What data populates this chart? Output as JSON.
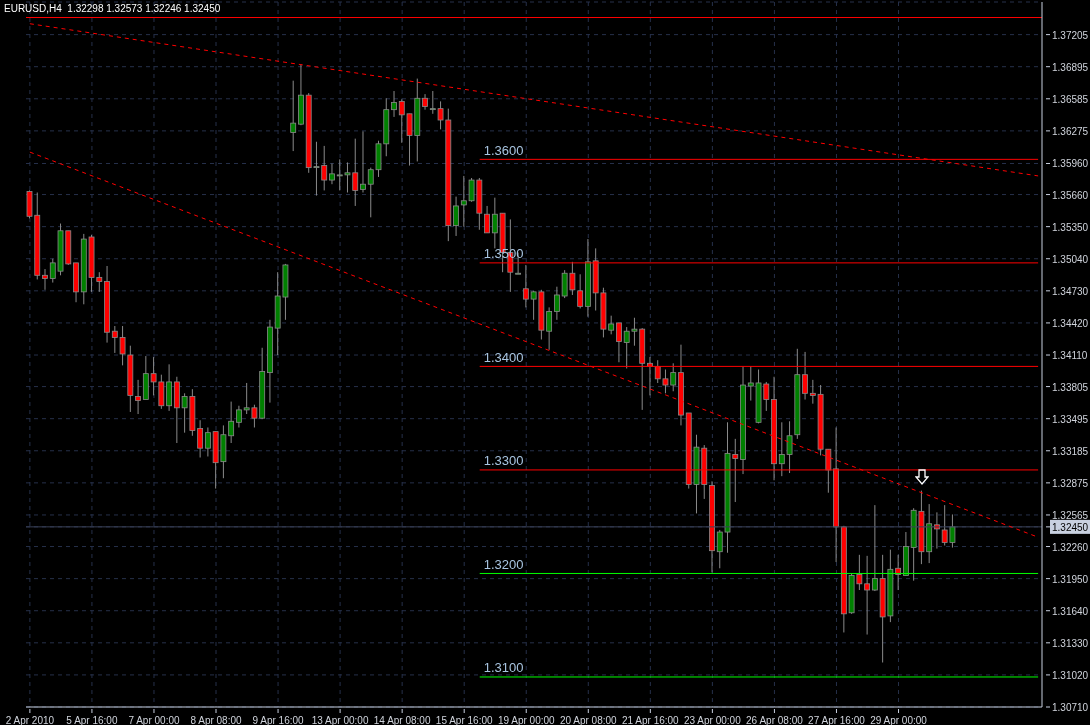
{
  "chart_data": {
    "type": "candlestick",
    "title": "EURUSD,H4  1.32298 1.32573 1.32246 1.32450",
    "categories": [
      "2 Apr 2010",
      null,
      null,
      null,
      null,
      null,
      null,
      null,
      "5 Apr 16:00",
      null,
      null,
      null,
      null,
      null,
      null,
      null,
      "7 Apr 00:00",
      null,
      null,
      null,
      null,
      null,
      null,
      null,
      "8 Apr 08:00",
      null,
      null,
      null,
      null,
      null,
      null,
      null,
      "9 Apr 16:00",
      null,
      null,
      null,
      null,
      null,
      null,
      null,
      "13 Apr 00:00",
      null,
      null,
      null,
      null,
      null,
      null,
      null,
      "14 Apr 08:00",
      null,
      null,
      null,
      null,
      null,
      null,
      null,
      "15 Apr 16:00",
      null,
      null,
      null,
      null,
      null,
      null,
      null,
      "19 Apr 00:00",
      null,
      null,
      null,
      null,
      null,
      null,
      null,
      "20 Apr 08:00",
      null,
      null,
      null,
      null,
      null,
      null,
      null,
      "21 Apr 16:00",
      null,
      null,
      null,
      null,
      null,
      null,
      null,
      "23 Apr 00:00",
      null,
      null,
      null,
      null,
      null,
      null,
      null,
      "26 Apr 08:00",
      null,
      null,
      null,
      null,
      null,
      null,
      null,
      "27 Apr 16:00",
      null,
      null,
      null,
      null,
      null,
      null,
      null,
      "29 Apr 00:00",
      null,
      null,
      null,
      null,
      null,
      null,
      null,
      null,
      null,
      null,
      null,
      null,
      null,
      null,
      null,
      null,
      null,
      null
    ],
    "ohlc": [
      [
        1.3569,
        1.357,
        1.3543,
        1.3545
      ],
      [
        1.3546,
        1.3568,
        1.3484,
        1.3488
      ],
      [
        1.3488,
        1.3494,
        1.3474,
        1.3485
      ],
      [
        1.3485,
        1.3504,
        1.3481,
        1.35
      ],
      [
        1.3492,
        1.3538,
        1.3488,
        1.3531
      ],
      [
        1.3531,
        1.3531,
        1.3498,
        1.3499
      ],
      [
        1.35,
        1.35,
        1.3462,
        1.3472
      ],
      [
        1.3472,
        1.3528,
        1.346,
        1.3523
      ],
      [
        1.3525,
        1.3527,
        1.3472,
        1.3486
      ],
      [
        1.3486,
        1.3491,
        1.3472,
        1.3482
      ],
      [
        1.3482,
        1.3497,
        1.3423,
        1.3433
      ],
      [
        1.3434,
        1.3439,
        1.3413,
        1.3428
      ],
      [
        1.3428,
        1.3439,
        1.3401,
        1.3412
      ],
      [
        1.3411,
        1.342,
        1.3356,
        1.3372
      ],
      [
        1.3371,
        1.3387,
        1.3354,
        1.3367
      ],
      [
        1.3368,
        1.341,
        1.3368,
        1.3393
      ],
      [
        1.3393,
        1.3409,
        1.3372,
        1.3385
      ],
      [
        1.3385,
        1.3392,
        1.3359,
        1.3362
      ],
      [
        1.3362,
        1.3402,
        1.3357,
        1.3385
      ],
      [
        1.3385,
        1.339,
        1.3326,
        1.336
      ],
      [
        1.336,
        1.3374,
        1.3336,
        1.3371
      ],
      [
        1.3371,
        1.3378,
        1.3333,
        1.3338
      ],
      [
        1.334,
        1.3348,
        1.3312,
        1.3321
      ],
      [
        1.3321,
        1.3341,
        1.3313,
        1.3336
      ],
      [
        1.3337,
        1.3337,
        1.3282,
        1.3307
      ],
      [
        1.3308,
        1.3343,
        1.3292,
        1.3334
      ],
      [
        1.3333,
        1.3366,
        1.3326,
        1.3347
      ],
      [
        1.3346,
        1.3362,
        1.3341,
        1.3358
      ],
      [
        1.3358,
        1.3384,
        1.3354,
        1.336
      ],
      [
        1.336,
        1.3363,
        1.3341,
        1.335
      ],
      [
        1.335,
        1.3418,
        1.3349,
        1.3395
      ],
      [
        1.3394,
        1.3445,
        1.3365,
        1.3438
      ],
      [
        1.3437,
        1.3491,
        1.3411,
        1.3468
      ],
      [
        1.3467,
        1.3499,
        1.3445,
        1.3498
      ],
      [
        1.3626,
        1.3676,
        1.3608,
        1.3635
      ],
      [
        1.3634,
        1.3692,
        1.3633,
        1.3662
      ],
      [
        1.3662,
        1.3664,
        1.3587,
        1.3592
      ],
      [
        1.3593,
        1.3617,
        1.3565,
        1.3593
      ],
      [
        1.3594,
        1.3613,
        1.357,
        1.358
      ],
      [
        1.358,
        1.3596,
        1.3576,
        1.3586
      ],
      [
        1.3585,
        1.36,
        1.357,
        1.3585
      ],
      [
        1.3585,
        1.3597,
        1.3568,
        1.3587
      ],
      [
        1.3587,
        1.362,
        1.3555,
        1.357
      ],
      [
        1.3571,
        1.3627,
        1.3568,
        1.3576
      ],
      [
        1.3576,
        1.3592,
        1.3544,
        1.359
      ],
      [
        1.359,
        1.3618,
        1.3583,
        1.3615
      ],
      [
        1.3615,
        1.3659,
        1.3603,
        1.3648
      ],
      [
        1.3648,
        1.3666,
        1.3641,
        1.3655
      ],
      [
        1.3656,
        1.3658,
        1.3616,
        1.3643
      ],
      [
        1.3644,
        1.3644,
        1.3594,
        1.3623
      ],
      [
        1.3623,
        1.3678,
        1.3598,
        1.3659
      ],
      [
        1.3659,
        1.3663,
        1.3648,
        1.3651
      ],
      [
        1.3649,
        1.3666,
        1.3644,
        1.3649
      ],
      [
        1.3649,
        1.3656,
        1.3629,
        1.3638
      ],
      [
        1.3638,
        1.3649,
        1.3521,
        1.3536
      ],
      [
        1.3536,
        1.3564,
        1.3526,
        1.3555
      ],
      [
        1.3556,
        1.3584,
        1.3535,
        1.356
      ],
      [
        1.356,
        1.3582,
        1.3559,
        1.358
      ],
      [
        1.358,
        1.3582,
        1.3532,
        1.3548
      ],
      [
        1.3547,
        1.3555,
        1.3529,
        1.3529
      ],
      [
        1.3529,
        1.3563,
        1.3514,
        1.3547
      ],
      [
        1.3548,
        1.3548,
        1.3491,
        1.351
      ],
      [
        1.351,
        1.3542,
        1.3472,
        1.3491
      ],
      [
        1.349,
        1.351,
        1.349,
        1.349
      ],
      [
        1.3475,
        1.3498,
        1.3457,
        1.3465
      ],
      [
        1.3465,
        1.3473,
        1.3445,
        1.3472
      ],
      [
        1.3472,
        1.3474,
        1.3426,
        1.3435
      ],
      [
        1.3434,
        1.3457,
        1.3416,
        1.3453
      ],
      [
        1.3453,
        1.3477,
        1.3445,
        1.3469
      ],
      [
        1.3468,
        1.3493,
        1.3466,
        1.349
      ],
      [
        1.349,
        1.3501,
        1.3469,
        1.3474
      ],
      [
        1.3473,
        1.3489,
        1.3456,
        1.3458
      ],
      [
        1.3458,
        1.3523,
        1.3448,
        1.3501
      ],
      [
        1.3502,
        1.3514,
        1.3454,
        1.3471
      ],
      [
        1.3471,
        1.3476,
        1.3428,
        1.3436
      ],
      [
        1.3435,
        1.3449,
        1.3431,
        1.3441
      ],
      [
        1.3442,
        1.3442,
        1.3404,
        1.3424
      ],
      [
        1.3423,
        1.3438,
        1.3398,
        1.3434
      ],
      [
        1.3434,
        1.3447,
        1.342,
        1.3436
      ],
      [
        1.3436,
        1.3437,
        1.3358,
        1.3403
      ],
      [
        1.3403,
        1.3409,
        1.3372,
        1.34
      ],
      [
        1.34,
        1.3406,
        1.3384,
        1.3388
      ],
      [
        1.3388,
        1.3397,
        1.3374,
        1.3382
      ],
      [
        1.3382,
        1.3403,
        1.3376,
        1.3394
      ],
      [
        1.3394,
        1.3421,
        1.3343,
        1.3353
      ],
      [
        1.3355,
        1.3355,
        1.3282,
        1.3286
      ],
      [
        1.3286,
        1.3334,
        1.3258,
        1.3322
      ],
      [
        1.3321,
        1.3324,
        1.3272,
        1.3286
      ],
      [
        1.3285,
        1.3289,
        1.3201,
        1.3222
      ],
      [
        1.3221,
        1.3242,
        1.3205,
        1.324
      ],
      [
        1.324,
        1.3346,
        1.322,
        1.3316
      ],
      [
        1.3315,
        1.333,
        1.3269,
        1.3311
      ],
      [
        1.331,
        1.34,
        1.3296,
        1.3382
      ],
      [
        1.3381,
        1.34,
        1.3367,
        1.3384
      ],
      [
        1.3346,
        1.3397,
        1.3345,
        1.3384
      ],
      [
        1.3383,
        1.3385,
        1.3357,
        1.3368
      ],
      [
        1.3368,
        1.339,
        1.329,
        1.3306
      ],
      [
        1.3306,
        1.3346,
        1.3294,
        1.3315
      ],
      [
        1.3315,
        1.3347,
        1.3297,
        1.3333
      ],
      [
        1.3334,
        1.3417,
        1.333,
        1.3392
      ],
      [
        1.3392,
        1.3414,
        1.3368,
        1.3374
      ],
      [
        1.3374,
        1.3387,
        1.3364,
        1.3372
      ],
      [
        1.3373,
        1.3382,
        1.3314,
        1.332
      ],
      [
        1.332,
        1.332,
        1.3278,
        1.33
      ],
      [
        1.3301,
        1.3341,
        1.3211,
        1.3245
      ],
      [
        1.3245,
        1.3246,
        1.3143,
        1.3161
      ],
      [
        1.3162,
        1.32,
        1.3161,
        1.3198
      ],
      [
        1.3199,
        1.3218,
        1.3184,
        1.319
      ],
      [
        1.319,
        1.3217,
        1.3141,
        1.3184
      ],
      [
        1.3184,
        1.3266,
        1.3183,
        1.3195
      ],
      [
        1.3195,
        1.3218,
        1.3114,
        1.3158
      ],
      [
        1.3159,
        1.3223,
        1.3153,
        1.3204
      ],
      [
        1.3205,
        1.3218,
        1.3184,
        1.3199
      ],
      [
        1.3198,
        1.324,
        1.3198,
        1.3226
      ],
      [
        1.3225,
        1.3263,
        1.3193,
        1.3261
      ],
      [
        1.326,
        1.328,
        1.3209,
        1.3221
      ],
      [
        1.3221,
        1.3267,
        1.321,
        1.3248
      ],
      [
        1.3247,
        1.3259,
        1.3224,
        1.3243
      ],
      [
        1.3242,
        1.3266,
        1.3227,
        1.323
      ],
      [
        1.323,
        1.3257,
        1.3225,
        1.3245
      ],
      null,
      null,
      null,
      null,
      null,
      null,
      null,
      null,
      null,
      null,
      null
    ],
    "colors": [
      "#ff0000",
      "#ff0000",
      "#ff0000",
      "#008000",
      "#008000",
      "#ff0000",
      "#ff0000",
      "#008000",
      "#ff0000",
      "#ff0000",
      "#ff0000",
      "#ff0000",
      "#ff0000",
      "#ff0000",
      "#ff0000",
      "#008000",
      "#ff0000",
      "#ff0000",
      "#008000",
      "#ff0000",
      "#008000",
      "#ff0000",
      "#ff0000",
      "#008000",
      "#ff0000",
      "#008000",
      "#008000",
      "#008000",
      "#008000",
      "#ff0000",
      "#008000",
      "#008000",
      "#008000",
      "#008000",
      "#008000",
      "#008000",
      "#ff0000",
      "#008000",
      "#ff0000",
      "#008000",
      "#008000",
      "#008000",
      "#ff0000",
      "#008000",
      "#008000",
      "#008000",
      "#008000",
      "#008000",
      "#ff0000",
      "#ff0000",
      "#008000",
      "#ff0000",
      "#008000",
      "#ff0000",
      "#ff0000",
      "#008000",
      "#008000",
      "#008000",
      "#ff0000",
      "#ff0000",
      "#008000",
      "#ff0000",
      "#ff0000",
      "#008000",
      "#ff0000",
      "#008000",
      "#ff0000",
      "#008000",
      "#008000",
      "#008000",
      "#ff0000",
      "#ff0000",
      "#008000",
      "#ff0000",
      "#ff0000",
      "#008000",
      "#ff0000",
      "#008000",
      "#008000",
      "#ff0000",
      "#ff0000",
      "#ff0000",
      "#ff0000",
      "#008000",
      "#ff0000",
      "#ff0000",
      "#008000",
      "#ff0000",
      "#ff0000",
      "#008000",
      "#008000",
      "#ff0000",
      "#008000",
      "#008000",
      "#008000",
      "#ff0000",
      "#ff0000",
      "#008000",
      "#008000",
      "#008000",
      "#ff0000",
      "#ff0000",
      "#ff0000",
      "#ff0000",
      "#ff0000",
      "#ff0000",
      "#008000",
      "#ff0000",
      "#ff0000",
      "#008000",
      "#ff0000",
      "#008000",
      "#ff0000",
      "#008000",
      "#008000",
      "#ff0000",
      "#008000",
      "#ff0000",
      "#ff0000",
      "#008000",
      null,
      null,
      null,
      null,
      null,
      null,
      null,
      null,
      null,
      null,
      null
    ],
    "series": [
      {
        "type": "line",
        "color": "#ff0000",
        "line_style": "dashed",
        "values": [
          1.3731,
          null,
          null,
          null,
          null,
          null,
          null,
          null,
          null,
          null,
          null,
          null,
          null,
          null,
          null,
          null,
          null,
          null,
          null,
          null,
          null,
          null,
          null,
          null,
          null,
          null,
          null,
          null,
          null,
          null,
          null,
          null,
          null,
          null,
          null,
          null,
          null,
          null,
          null,
          null,
          null,
          null,
          null,
          null,
          null,
          null,
          null,
          null,
          null,
          null,
          null,
          null,
          null,
          null,
          null,
          null,
          null,
          null,
          null,
          null,
          null,
          null,
          null,
          null,
          null,
          null,
          null,
          null,
          null,
          null,
          null,
          null,
          null,
          null,
          null,
          null,
          null,
          null,
          null,
          null,
          null,
          null,
          null,
          null,
          null,
          null,
          null,
          null,
          null,
          null,
          null,
          null,
          null,
          null,
          null,
          null,
          null,
          null,
          null,
          null,
          null,
          null,
          null,
          null,
          null,
          null,
          null,
          null,
          null,
          null,
          null,
          null,
          null,
          null,
          null,
          null,
          null,
          null,
          null,
          null,
          null,
          null,
          null,
          null,
          null,
          null,
          null,
          null,
          null,
          null,
          1.3584
        ]
      },
      {
        "type": "line",
        "color": "#ff0000",
        "line_style": "dashed",
        "values": [
          1.3607,
          null,
          null,
          null,
          null,
          null,
          null,
          null,
          null,
          null,
          null,
          null,
          null,
          null,
          null,
          null,
          null,
          null,
          null,
          null,
          null,
          null,
          null,
          null,
          null,
          null,
          null,
          null,
          null,
          null,
          null,
          null,
          null,
          null,
          null,
          null,
          null,
          null,
          null,
          null,
          null,
          null,
          null,
          null,
          null,
          null,
          null,
          null,
          null,
          null,
          null,
          null,
          null,
          null,
          null,
          null,
          null,
          null,
          null,
          null,
          null,
          null,
          null,
          null,
          null,
          null,
          null,
          null,
          null,
          null,
          null,
          null,
          null,
          null,
          null,
          null,
          null,
          null,
          null,
          null,
          null,
          null,
          null,
          null,
          null,
          null,
          null,
          null,
          null,
          null,
          null,
          null,
          null,
          null,
          null,
          null,
          null,
          null,
          null,
          null,
          null,
          null,
          null,
          null,
          null,
          null,
          null,
          null,
          null,
          null,
          null,
          null,
          null,
          null,
          null,
          null,
          null,
          null,
          null,
          null,
          null,
          null,
          null,
          null,
          null,
          null,
          null,
          null,
          null,
          null,
          1.3235
        ]
      }
    ],
    "ref_lines": [
      {
        "axis": "y",
        "value": 1.3737,
        "color": "#ff0000"
      },
      {
        "axis": "y",
        "value": 1.36,
        "label": "1.3600",
        "color": "#ff0000"
      },
      {
        "axis": "y",
        "value": 1.35,
        "label": "1.3500",
        "color": "#ff0000"
      },
      {
        "axis": "y",
        "value": 1.34,
        "label": "1.3400",
        "color": "#ff0000"
      },
      {
        "axis": "y",
        "value": 1.33,
        "label": "1.3300",
        "color": "#ff0000"
      },
      {
        "axis": "y",
        "value": 1.32,
        "label": "1.3200",
        "color": "#00ff00"
      },
      {
        "axis": "y",
        "value": 1.31,
        "label": "1.3100",
        "color": "#00ff00"
      },
      {
        "axis": "y",
        "value": 1.3245,
        "color": "#3a4258"
      }
    ],
    "ylim": [
      1.3071,
      1.3752
    ],
    "yticks": [
      1.37205,
      1.36895,
      1.36585,
      1.36275,
      {
        "value": 1.3596,
        "label": "1.35960"
      },
      {
        "value": 1.3566,
        "label": "1.35660"
      },
      {
        "value": 1.3535,
        "label": "1.35350"
      },
      {
        "value": 1.3504,
        "label": "1.35040"
      },
      {
        "value": 1.3473,
        "label": "1.34730"
      },
      {
        "value": 1.3442,
        "label": "1.34420"
      },
      {
        "value": 1.3411,
        "label": "1.34110"
      },
      1.33805,
      1.33495,
      1.33185,
      1.32875,
      1.32565,
      {
        "value": 1.3245,
        "label": "1.32450"
      },
      {
        "value": 1.3226,
        "label": "1.32260"
      },
      {
        "value": 1.3195,
        "label": "1.31950"
      },
      {
        "value": 1.3164,
        "label": "1.31640"
      },
      {
        "value": 1.3133,
        "label": "1.31330"
      },
      {
        "value": 1.3102,
        "label": "1.31020"
      },
      {
        "value": 1.3071,
        "label": "1.30710"
      }
    ],
    "grid": true
  }
}
